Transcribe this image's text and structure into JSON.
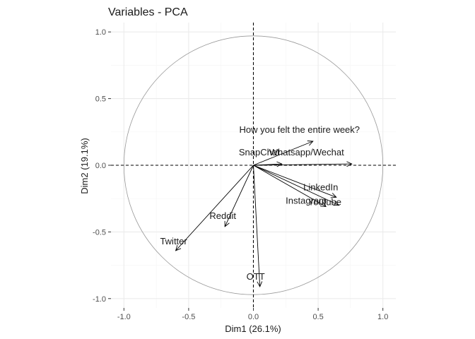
{
  "chart_data": {
    "type": "scatter",
    "title": "Variables - PCA",
    "xlabel": "Dim1 (26.1%)",
    "ylabel": "Dim2 (19.1%)",
    "xlim": [
      -1.1,
      1.1
    ],
    "ylim": [
      -1.07,
      1.07
    ],
    "x_ticks": [
      -1.0,
      -0.5,
      0.0,
      0.5,
      1.0
    ],
    "x_tick_labels": [
      "-1.0",
      "-0.5",
      "0.0",
      "0.5",
      "1.0"
    ],
    "y_ticks": [
      -1.0,
      -0.5,
      0.0,
      0.5,
      1.0
    ],
    "y_tick_labels": [
      "-1.0",
      "-0.5",
      "0.0",
      "0.5",
      "1.0"
    ],
    "grid": true,
    "unit_circle": true,
    "colors": {
      "arrow": "#000000",
      "circle": "#999999",
      "grid_major": "#ebebeb",
      "grid_minor": "#f5f5f5",
      "text": "#1a1a1a",
      "ticks": "#4d4d4d"
    },
    "variables": [
      {
        "name": "How you felt the entire week?",
        "x": 0.46,
        "y": 0.18
      },
      {
        "name": "SnapChat",
        "x": 0.22,
        "y": 0.01
      },
      {
        "name": "Whatsapp/Wechat",
        "x": 0.76,
        "y": 0.01
      },
      {
        "name": "LinkedIn",
        "x": 0.64,
        "y": -0.24
      },
      {
        "name": "Instagram",
        "x": 0.56,
        "y": -0.31
      },
      {
        "name": "Youtube",
        "x": 0.66,
        "y": -0.3
      },
      {
        "name": "Reddit",
        "x": -0.22,
        "y": -0.46
      },
      {
        "name": "Twitter",
        "x": -0.6,
        "y": -0.64
      },
      {
        "name": "OTT",
        "x": 0.05,
        "y": -0.91
      }
    ]
  }
}
